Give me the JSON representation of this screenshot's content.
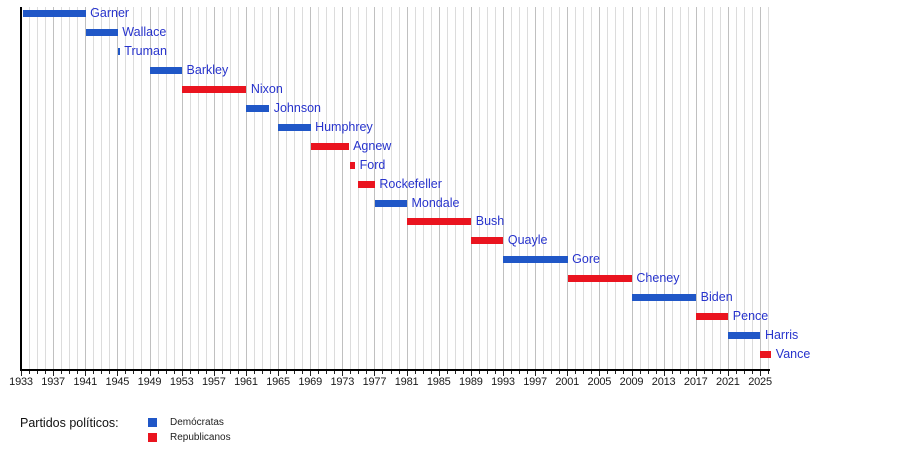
{
  "chart_data": {
    "type": "bar",
    "variant": "gantt-timeline",
    "title": "",
    "x_axis": {
      "range": [
        1933,
        2026.3
      ],
      "minor_tick_step_years": 1,
      "label_step_years": 4,
      "grid": true,
      "tick_labels": [
        "1933",
        "1937",
        "1941",
        "1945",
        "1949",
        "1953",
        "1957",
        "1961",
        "1965",
        "1969",
        "1973",
        "1977",
        "1981",
        "1985",
        "1989",
        "1993",
        "1997",
        "2001",
        "2005",
        "2009",
        "2013",
        "2017",
        "2021",
        "2025"
      ]
    },
    "bars": [
      {
        "label": "Garner",
        "party": "Demócratas",
        "start": 1933.2,
        "end": 1941.05
      },
      {
        "label": "Wallace",
        "party": "Demócratas",
        "start": 1941.05,
        "end": 1945.05
      },
      {
        "label": "Truman",
        "party": "Demócratas",
        "start": 1945.05,
        "end": 1945.3
      },
      {
        "label": "Barkley",
        "party": "Demócratas",
        "start": 1949.05,
        "end": 1953.05
      },
      {
        "label": "Nixon",
        "party": "Republicanos",
        "start": 1953.05,
        "end": 1961.05
      },
      {
        "label": "Johnson",
        "party": "Demócratas",
        "start": 1961.05,
        "end": 1963.9
      },
      {
        "label": "Humphrey",
        "party": "Demócratas",
        "start": 1965.05,
        "end": 1969.05
      },
      {
        "label": "Agnew",
        "party": "Republicanos",
        "start": 1969.05,
        "end": 1973.78
      },
      {
        "label": "Ford",
        "party": "Republicanos",
        "start": 1973.93,
        "end": 1974.6
      },
      {
        "label": "Rockefeller",
        "party": "Republicanos",
        "start": 1974.97,
        "end": 1977.05
      },
      {
        "label": "Mondale",
        "party": "Demócratas",
        "start": 1977.05,
        "end": 1981.05
      },
      {
        "label": "Bush",
        "party": "Republicanos",
        "start": 1981.05,
        "end": 1989.05
      },
      {
        "label": "Quayle",
        "party": "Republicanos",
        "start": 1989.05,
        "end": 1993.05
      },
      {
        "label": "Gore",
        "party": "Demócratas",
        "start": 1993.05,
        "end": 2001.05
      },
      {
        "label": "Cheney",
        "party": "Republicanos",
        "start": 2001.05,
        "end": 2009.05
      },
      {
        "label": "Biden",
        "party": "Demócratas",
        "start": 2009.05,
        "end": 2017.05
      },
      {
        "label": "Pence",
        "party": "Republicanos",
        "start": 2017.05,
        "end": 2021.05
      },
      {
        "label": "Harris",
        "party": "Demócratas",
        "start": 2021.05,
        "end": 2025.05
      },
      {
        "label": "Vance",
        "party": "Republicanos",
        "start": 2025.05,
        "end": 2026.4
      }
    ]
  },
  "colors": {
    "democrats_blue": "#2057c7",
    "republicans_red": "#ea141f",
    "bar_label_text": "#2733cc",
    "axis_line": "#000000",
    "tick_mark": "#222222",
    "tick_label_text": "#1a1a1a",
    "grid_minor": "#dcdcdc",
    "grid_major": "#c0c0c0",
    "background": "#ffffff"
  },
  "legend": {
    "title": "Partidos políticos:",
    "items": [
      {
        "label": "Demócratas",
        "party": "Demócratas"
      },
      {
        "label": "Republicanos",
        "party": "Republicanos"
      }
    ]
  }
}
